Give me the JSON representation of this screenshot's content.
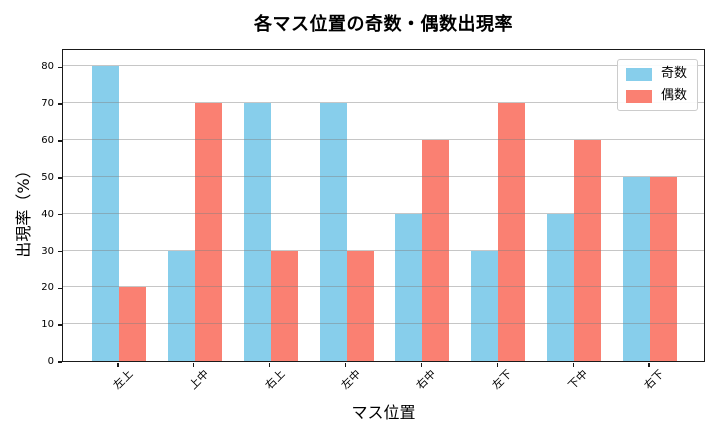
{
  "chart_data": {
    "type": "bar",
    "title": "各マス位置の奇数・偶数出現率",
    "xlabel": "マス位置",
    "ylabel": "出現率（%）",
    "categories": [
      "左上",
      "上中",
      "右上",
      "左中",
      "右中",
      "左下",
      "下中",
      "右下"
    ],
    "series": [
      {
        "name": "奇数",
        "color": "#87CEEB",
        "values": [
          80,
          30,
          70,
          70,
          40,
          30,
          40,
          50
        ]
      },
      {
        "name": "偶数",
        "color": "#FA8072",
        "values": [
          20,
          70,
          30,
          30,
          60,
          70,
          60,
          50
        ]
      }
    ],
    "ylim": [
      0,
      85
    ],
    "yticks": [
      0,
      10,
      20,
      30,
      40,
      50,
      60,
      70,
      80
    ],
    "grid": true,
    "grid_over_bars": true,
    "legend_position": "upper-right"
  },
  "colors": {
    "background": "#ffffff",
    "spine": "#1a1a1a",
    "gridline": "#c6c6c6",
    "legend_border": "#cccccc",
    "odd_series": "#87CEEB",
    "even_series": "#FA8072"
  }
}
